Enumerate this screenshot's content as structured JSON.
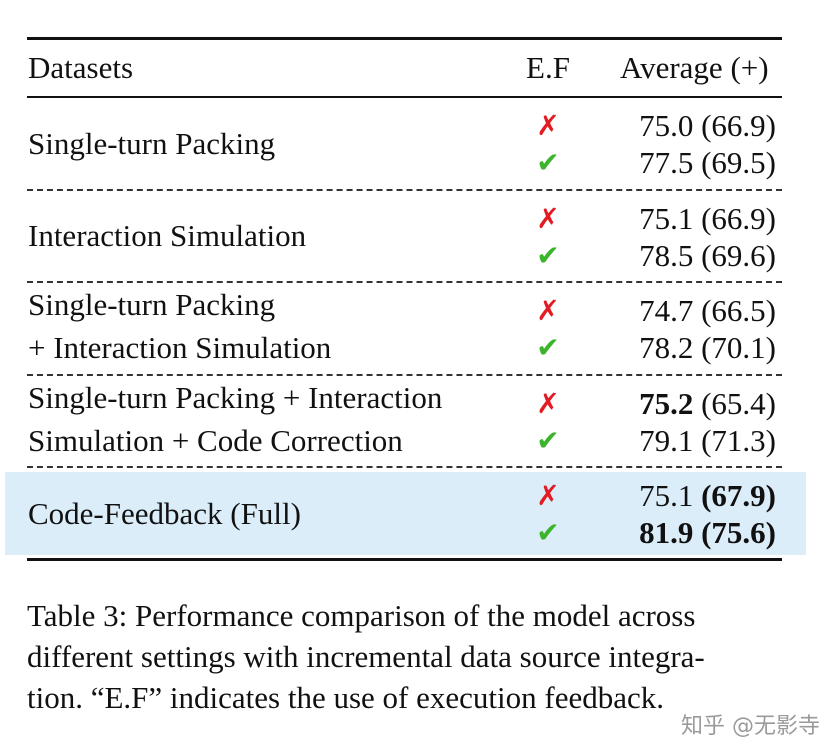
{
  "table": {
    "header": [
      "Datasets",
      "E.F",
      "Average (+)"
    ],
    "groups": [
      {
        "name_lines": [
          "Single-turn Packing"
        ],
        "rows": [
          {
            "mark": "✗",
            "mark_color": "#e31b23",
            "main": "75.0",
            "sub": "(66.9)",
            "bold_main": false,
            "bold_sub": false
          },
          {
            "mark": "✔",
            "mark_color": "#3cb52c",
            "main": "77.5",
            "sub": "(69.5)",
            "bold_main": false,
            "bold_sub": false
          }
        ]
      },
      {
        "name_lines": [
          "Interaction Simulation"
        ],
        "rows": [
          {
            "mark": "✗",
            "mark_color": "#e31b23",
            "main": "75.1",
            "sub": "(66.9)",
            "bold_main": false,
            "bold_sub": false
          },
          {
            "mark": "✔",
            "mark_color": "#3cb52c",
            "main": "78.5",
            "sub": "(69.6)",
            "bold_main": false,
            "bold_sub": false
          }
        ]
      },
      {
        "name_lines": [
          "Single-turn Packing",
          "+ Interaction Simulation"
        ],
        "rows": [
          {
            "mark": "✗",
            "mark_color": "#e31b23",
            "main": "74.7",
            "sub": "(66.5)",
            "bold_main": false,
            "bold_sub": false
          },
          {
            "mark": "✔",
            "mark_color": "#3cb52c",
            "main": "78.2",
            "sub": "(70.1)",
            "bold_main": false,
            "bold_sub": false
          }
        ]
      },
      {
        "name_lines": [
          "Single-turn Packing + Interaction",
          "Simulation + Code Correction"
        ],
        "rows": [
          {
            "mark": "✗",
            "mark_color": "#e31b23",
            "main": "75.2",
            "sub": "(65.4)",
            "bold_main": true,
            "bold_sub": false
          },
          {
            "mark": "✔",
            "mark_color": "#3cb52c",
            "main": "79.1",
            "sub": "(71.3)",
            "bold_main": false,
            "bold_sub": false
          }
        ]
      },
      {
        "name_lines": [
          "Code-Feedback (Full)"
        ],
        "highlight": true,
        "highlight_color": "#dcedfa",
        "rows": [
          {
            "mark": "✗",
            "mark_color": "#e31b23",
            "main": "75.1",
            "sub": "(67.9)",
            "bold_main": false,
            "bold_sub": true
          },
          {
            "mark": "✔",
            "mark_color": "#3cb52c",
            "main": "81.9",
            "sub": "(75.6)",
            "bold_main": true,
            "bold_sub": true
          }
        ]
      }
    ]
  },
  "caption": {
    "lines": [
      "Table 3: Performance comparison of the model across",
      "different settings with incremental data source integra-",
      "tion. “E.F” indicates the use of execution feedback."
    ]
  },
  "watermark": "知乎 @无影寺"
}
